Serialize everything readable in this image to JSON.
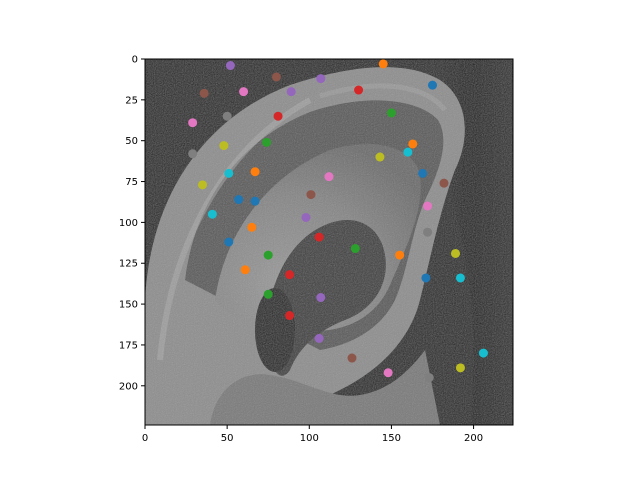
{
  "chart_data": {
    "type": "scatter",
    "title": "",
    "xlabel": "",
    "ylabel": "",
    "xlim": [
      0,
      224
    ],
    "ylim": [
      224,
      0
    ],
    "y_inverted": true,
    "background": "grayscale photograph of a human ear",
    "grid": false,
    "legend": "none",
    "x_ticks": [
      0,
      50,
      100,
      150,
      200
    ],
    "y_ticks": [
      0,
      25,
      50,
      75,
      100,
      125,
      150,
      175,
      200
    ],
    "palette": [
      "#1f77b4",
      "#ff7f0e",
      "#2ca02c",
      "#d62728",
      "#9467bd",
      "#8c564b",
      "#e377c2",
      "#7f7f7f",
      "#bcbd22",
      "#17becf"
    ],
    "points": [
      {
        "x": 52,
        "y": 4,
        "color": "#9467bd"
      },
      {
        "x": 80,
        "y": 11,
        "color": "#8c564b"
      },
      {
        "x": 107,
        "y": 12,
        "color": "#9467bd"
      },
      {
        "x": 145,
        "y": 3,
        "color": "#ff7f0e"
      },
      {
        "x": 175,
        "y": 16,
        "color": "#1f77b4"
      },
      {
        "x": 36,
        "y": 21,
        "color": "#8c564b"
      },
      {
        "x": 60,
        "y": 20,
        "color": "#e377c2"
      },
      {
        "x": 89,
        "y": 20,
        "color": "#9467bd"
      },
      {
        "x": 130,
        "y": 19,
        "color": "#d62728"
      },
      {
        "x": 29,
        "y": 39,
        "color": "#e377c2"
      },
      {
        "x": 50,
        "y": 35,
        "color": "#7f7f7f"
      },
      {
        "x": 81,
        "y": 35,
        "color": "#d62728"
      },
      {
        "x": 150,
        "y": 33,
        "color": "#2ca02c"
      },
      {
        "x": 29,
        "y": 58,
        "color": "#7f7f7f"
      },
      {
        "x": 48,
        "y": 53,
        "color": "#bcbd22"
      },
      {
        "x": 74,
        "y": 51,
        "color": "#2ca02c"
      },
      {
        "x": 143,
        "y": 60,
        "color": "#bcbd22"
      },
      {
        "x": 160,
        "y": 57,
        "color": "#17becf"
      },
      {
        "x": 163,
        "y": 52,
        "color": "#ff7f0e"
      },
      {
        "x": 35,
        "y": 77,
        "color": "#bcbd22"
      },
      {
        "x": 51,
        "y": 70,
        "color": "#17becf"
      },
      {
        "x": 67,
        "y": 69,
        "color": "#ff7f0e"
      },
      {
        "x": 112,
        "y": 72,
        "color": "#e377c2"
      },
      {
        "x": 169,
        "y": 70,
        "color": "#1f77b4"
      },
      {
        "x": 182,
        "y": 76,
        "color": "#8c564b"
      },
      {
        "x": 101,
        "y": 83,
        "color": "#8c564b"
      },
      {
        "x": 57,
        "y": 86,
        "color": "#1f77b4"
      },
      {
        "x": 67,
        "y": 87,
        "color": "#1f77b4"
      },
      {
        "x": 41,
        "y": 95,
        "color": "#17becf"
      },
      {
        "x": 98,
        "y": 97,
        "color": "#9467bd"
      },
      {
        "x": 172,
        "y": 90,
        "color": "#e377c2"
      },
      {
        "x": 65,
        "y": 103,
        "color": "#ff7f0e"
      },
      {
        "x": 106,
        "y": 109,
        "color": "#d62728"
      },
      {
        "x": 172,
        "y": 106,
        "color": "#7f7f7f"
      },
      {
        "x": 51,
        "y": 112,
        "color": "#1f77b4"
      },
      {
        "x": 128,
        "y": 116,
        "color": "#2ca02c"
      },
      {
        "x": 75,
        "y": 120,
        "color": "#2ca02c"
      },
      {
        "x": 155,
        "y": 120,
        "color": "#ff7f0e"
      },
      {
        "x": 189,
        "y": 119,
        "color": "#bcbd22"
      },
      {
        "x": 61,
        "y": 129,
        "color": "#ff7f0e"
      },
      {
        "x": 88,
        "y": 132,
        "color": "#d62728"
      },
      {
        "x": 171,
        "y": 134,
        "color": "#1f77b4"
      },
      {
        "x": 192,
        "y": 134,
        "color": "#17becf"
      },
      {
        "x": 75,
        "y": 144,
        "color": "#2ca02c"
      },
      {
        "x": 107,
        "y": 146,
        "color": "#9467bd"
      },
      {
        "x": 88,
        "y": 157,
        "color": "#d62728"
      },
      {
        "x": 106,
        "y": 171,
        "color": "#9467bd"
      },
      {
        "x": 126,
        "y": 183,
        "color": "#8c564b"
      },
      {
        "x": 206,
        "y": 180,
        "color": "#17becf"
      },
      {
        "x": 148,
        "y": 192,
        "color": "#e377c2"
      },
      {
        "x": 173,
        "y": 195,
        "color": "#7f7f7f"
      },
      {
        "x": 192,
        "y": 189,
        "color": "#bcbd22"
      }
    ]
  }
}
